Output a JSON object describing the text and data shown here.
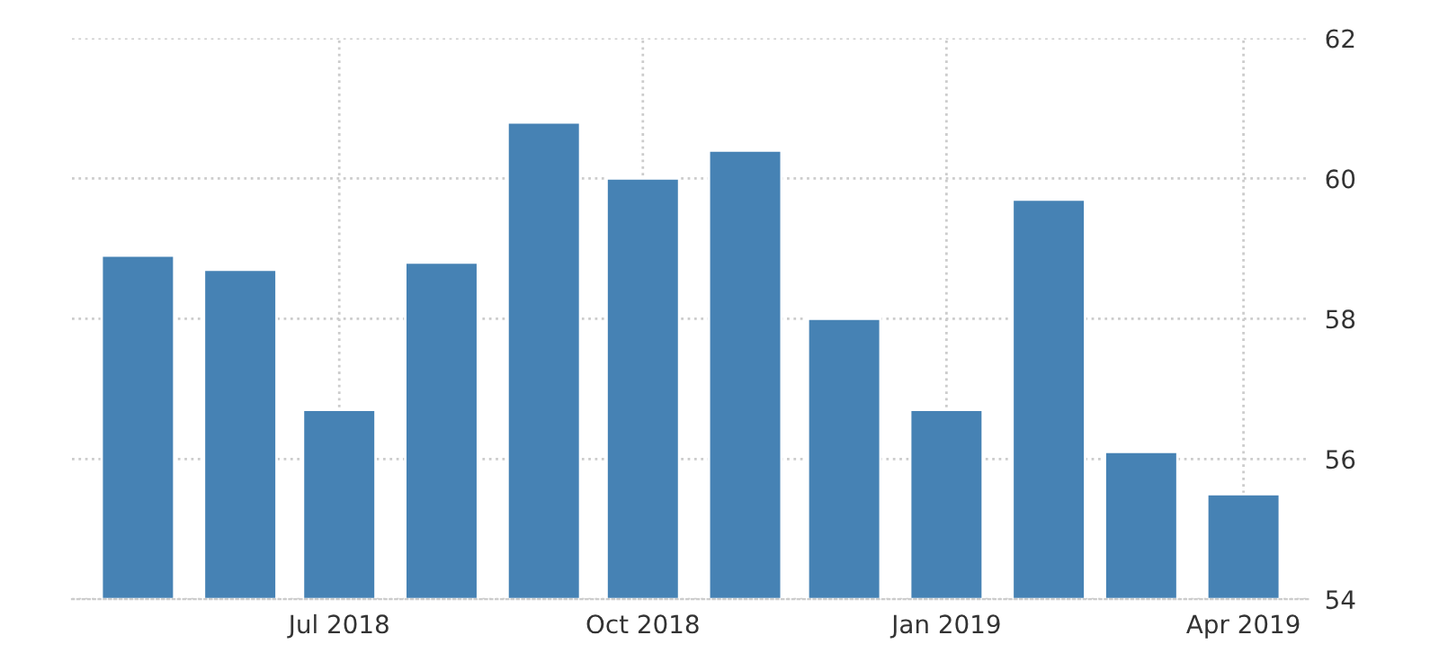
{
  "chart_data": {
    "type": "bar",
    "x": [
      "2018-05",
      "2018-06",
      "2018-07",
      "2018-08",
      "2018-09",
      "2018-10",
      "2018-11",
      "2018-12",
      "2019-01",
      "2019-02",
      "2019-03",
      "2019-04"
    ],
    "values": [
      58.9,
      58.7,
      56.7,
      58.8,
      60.8,
      60.0,
      60.4,
      58.0,
      56.7,
      59.7,
      56.1,
      55.5
    ],
    "color": "#4682b4",
    "xlim": [
      "2018-04-11",
      "2019-04-21"
    ],
    "xticks": [
      {
        "value": "2018-07",
        "label": "Jul 2018"
      },
      {
        "value": "2018-10",
        "label": "Oct 2018"
      },
      {
        "value": "2019-01",
        "label": "Jan 2019"
      },
      {
        "value": "2019-04",
        "label": "Apr 2019"
      }
    ],
    "ylim": [
      54,
      62
    ],
    "yticks": [
      54,
      56,
      58,
      60,
      62
    ],
    "grid": true,
    "legend": false
  }
}
